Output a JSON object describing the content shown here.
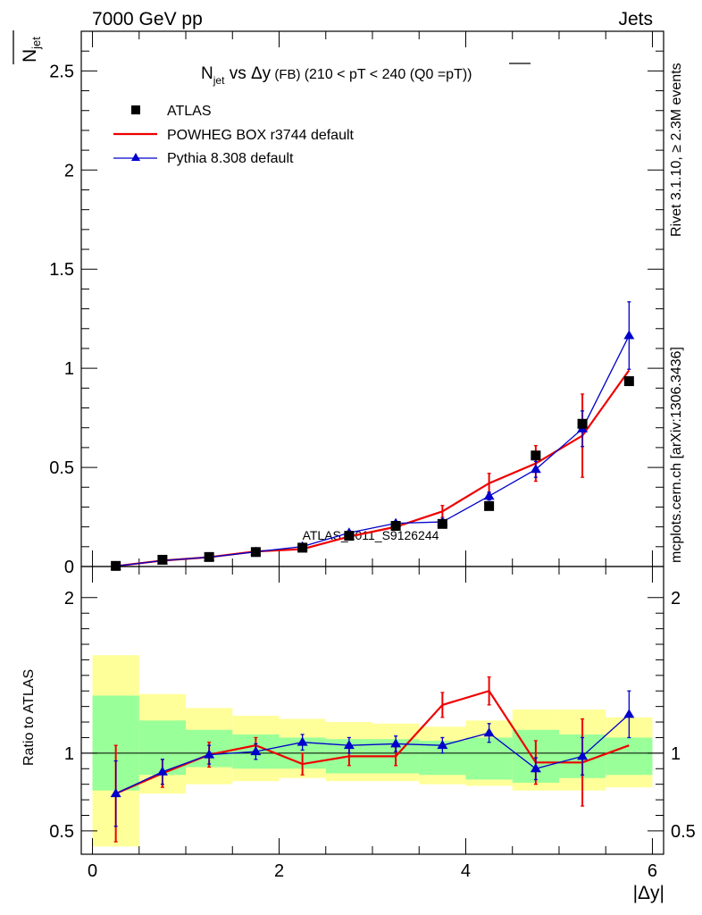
{
  "header": {
    "left": "7000 GeV pp",
    "right": "Jets"
  },
  "side_labels": {
    "rivet": "Rivet 3.1.10, ≥ 2.3M events",
    "mcplots": "mcplots.cern.ch [arXiv:1306.3436]"
  },
  "watermark": "ATLAS_2011_S9126244",
  "colors": {
    "data": "#000000",
    "powheg": "#ee0000",
    "pythia": "#0000cc",
    "band_inner": "#99ff99",
    "band_outer": "#ffff99"
  },
  "chart_data": [
    {
      "type": "scatter",
      "panel": "main",
      "title_parts": {
        "n": "N",
        "n_sub": "jet",
        "vs": " vs ",
        "dy": "Δy",
        "fb": " (FB) ",
        "range": "(210 < pT < 240 (Q0 =",
        "pt": "pT",
        "close": "))"
      },
      "ylabel": "N",
      "ylabel_sub": "jet",
      "ylim": [
        0,
        2.7
      ],
      "xlim": [
        -0.12,
        6.12
      ],
      "y_ticks": [
        {
          "v": 0,
          "label": "0"
        },
        {
          "v": 0.5,
          "label": "0.5"
        },
        {
          "v": 1,
          "label": "1"
        },
        {
          "v": 1.5,
          "label": "1.5"
        },
        {
          "v": 2,
          "label": "2"
        },
        {
          "v": 2.5,
          "label": "2.5"
        }
      ],
      "legend": [
        "ATLAS",
        "POWHEG BOX r3744 default",
        "Pythia 8.308 default"
      ],
      "x": [
        0.25,
        0.75,
        1.25,
        1.75,
        2.25,
        2.75,
        3.25,
        3.75,
        4.25,
        4.75,
        5.25,
        5.75
      ],
      "series": [
        {
          "name": "ATLAS",
          "values": [
            0.003,
            0.034,
            0.048,
            0.073,
            0.095,
            0.155,
            0.205,
            0.215,
            0.305,
            0.56,
            0.72,
            0.935
          ]
        },
        {
          "name": "POWHEG BOX r3744 default",
          "values": [
            0.002,
            0.03,
            0.047,
            0.076,
            0.088,
            0.151,
            0.2,
            0.278,
            0.42,
            0.52,
            0.66,
            0.99
          ],
          "err": [
            0.001,
            0.004,
            0.005,
            0.005,
            0.005,
            0.008,
            0.01,
            0.03,
            0.05,
            0.09,
            0.21,
            0.0
          ]
        },
        {
          "name": "Pythia 8.308 default",
          "values": [
            0.002,
            0.03,
            0.047,
            0.074,
            0.101,
            0.17,
            0.218,
            0.225,
            0.355,
            0.49,
            0.695,
            1.165
          ],
          "err": [
            0.001,
            0.004,
            0.004,
            0.005,
            0.006,
            0.008,
            0.01,
            0.012,
            0.02,
            0.04,
            0.09,
            0.17
          ]
        }
      ]
    },
    {
      "type": "line",
      "panel": "ratio",
      "ylabel": "Ratio to ATLAS",
      "ylim": [
        0.35,
        2.2
      ],
      "xlim": [
        -0.12,
        6.12
      ],
      "xlabel": "|Δy|",
      "reference": 1,
      "y_ticks": [
        {
          "v": 0.5,
          "label": "0.5"
        },
        {
          "v": 1,
          "label": "1"
        },
        {
          "v": 2,
          "label": "2"
        }
      ],
      "x_ticks": [
        {
          "v": 0,
          "label": "0"
        },
        {
          "v": 2,
          "label": "2"
        },
        {
          "v": 4,
          "label": "4"
        },
        {
          "v": 6,
          "label": "6"
        }
      ],
      "bins": [
        0,
        0.5,
        1,
        1.5,
        2,
        2.5,
        3,
        3.5,
        4,
        4.5,
        5,
        5.5,
        6
      ],
      "band_inner": [
        [
          0.76,
          1.37
        ],
        [
          0.86,
          1.21
        ],
        [
          0.91,
          1.15
        ],
        [
          0.9,
          1.12
        ],
        [
          0.9,
          1.1
        ],
        [
          0.87,
          1.09
        ],
        [
          0.87,
          1.09
        ],
        [
          0.86,
          1.08
        ],
        [
          0.83,
          1.1
        ],
        [
          0.81,
          1.15
        ],
        [
          0.84,
          1.12
        ],
        [
          0.86,
          1.1
        ],
        [
          0.88,
          1.11
        ]
      ],
      "band_outer": [
        [
          0.4,
          1.63
        ],
        [
          0.74,
          1.38
        ],
        [
          0.8,
          1.29
        ],
        [
          0.82,
          1.24
        ],
        [
          0.84,
          1.22
        ],
        [
          0.82,
          1.2
        ],
        [
          0.82,
          1.19
        ],
        [
          0.8,
          1.17
        ],
        [
          0.79,
          1.21
        ],
        [
          0.76,
          1.28
        ],
        [
          0.76,
          1.28
        ],
        [
          0.78,
          1.23
        ],
        [
          0.87,
          1.24
        ]
      ],
      "x": [
        0.25,
        0.75,
        1.25,
        1.75,
        2.25,
        2.75,
        3.25,
        3.75,
        4.25,
        4.75,
        5.25,
        5.75
      ],
      "series": [
        {
          "name": "POWHEG BOX r3744 default",
          "values": [
            0.74,
            0.87,
            0.99,
            1.05,
            0.93,
            0.98,
            0.98,
            1.31,
            1.4,
            0.94,
            0.94,
            1.05
          ],
          "err": [
            0.31,
            0.09,
            0.08,
            0.05,
            0.07,
            0.06,
            0.06,
            0.08,
            0.09,
            0.14,
            0.28,
            0.0
          ]
        },
        {
          "name": "Pythia 8.308 default",
          "values": [
            0.74,
            0.88,
            0.99,
            1.01,
            1.07,
            1.05,
            1.06,
            1.05,
            1.13,
            0.9,
            0.98,
            1.25
          ],
          "err": [
            0.21,
            0.08,
            0.06,
            0.05,
            0.05,
            0.05,
            0.05,
            0.05,
            0.06,
            0.07,
            0.12,
            0.15
          ]
        }
      ]
    }
  ]
}
